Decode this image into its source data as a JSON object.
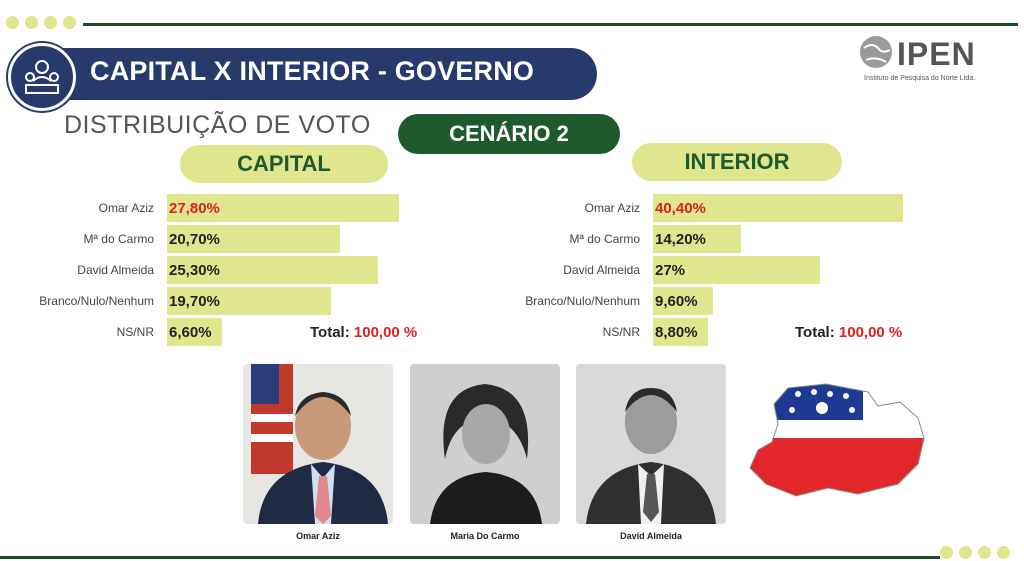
{
  "header": {
    "title": "CAPITAL X INTERIOR - GOVERNO",
    "subtitle": "DISTRIBUIÇÃO DE VOTO",
    "scenario": "CENÁRIO 2",
    "logo_name": "IPEN",
    "logo_sub": "Instituto de Pesquisa do Norte Ltda."
  },
  "chart_data": [
    {
      "type": "bar",
      "title": "CAPITAL",
      "categories": [
        "Omar Aziz",
        "Mª do Carmo",
        "David Almeida",
        "Branco/Nulo/Nenhum",
        "NS/NR"
      ],
      "values": [
        27.8,
        20.7,
        25.3,
        19.7,
        6.6
      ],
      "value_labels": [
        "27,80%",
        "20,70%",
        "25,30%",
        "19,70%",
        "6,60%"
      ],
      "highlight_index": 0,
      "total_label": "Total:",
      "total_value": "100,00 %"
    },
    {
      "type": "bar",
      "title": "INTERIOR",
      "categories": [
        "Omar Aziz",
        "Mª do Carmo",
        "David Almeida",
        "Branco/Nulo/Nenhum",
        "NS/NR"
      ],
      "values": [
        40.4,
        14.2,
        27,
        9.6,
        8.8
      ],
      "value_labels": [
        "40,40%",
        "14,20%",
        "27%",
        "9,60%",
        "8,80%"
      ],
      "highlight_index": 0,
      "total_label": "Total:",
      "total_value": "100,00 %"
    }
  ],
  "candidates": [
    {
      "name": "Omar Aziz",
      "icon": "person-photo"
    },
    {
      "name": "Maria Do Carmo",
      "icon": "person-photo"
    },
    {
      "name": "David Almeida",
      "icon": "person-photo"
    }
  ],
  "colors": {
    "navy": "#263a6b",
    "green": "#1f5a2e",
    "bar": "#dfe68e",
    "highlight": "#e02020"
  }
}
